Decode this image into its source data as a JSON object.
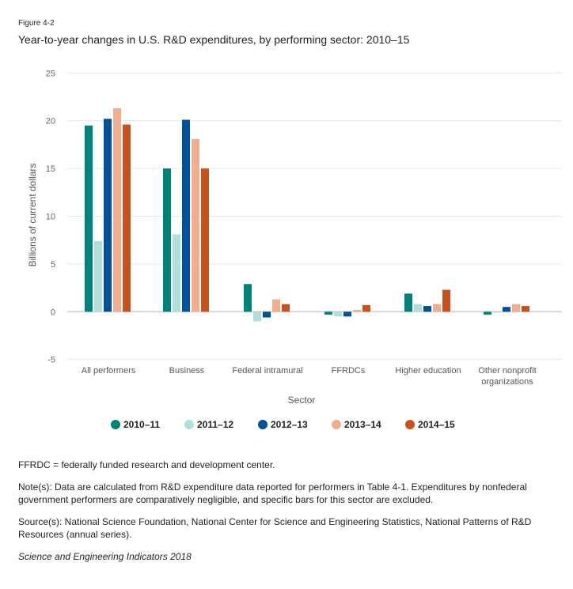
{
  "header": {
    "figure": "Figure 4-2",
    "title": "Year-to-year changes in U.S. R&D expenditures, by performing sector: 2010–15"
  },
  "chart_data": {
    "type": "bar",
    "title": "Year-to-year changes in U.S. R&D expenditures, by performing sector: 2010–15",
    "xlabel": "Sector",
    "ylabel": "Billions of current dollars",
    "ylim": [
      -5,
      25
    ],
    "yticks": [
      -5,
      0,
      5,
      10,
      15,
      20,
      25
    ],
    "grid": true,
    "legend": "bottom",
    "categories": [
      "All performers",
      "Business",
      "Federal intramural",
      "FFRDCs",
      "Higher education",
      "Other nonprofit organizations"
    ],
    "series": [
      {
        "name": "2010–11",
        "color": "#00827c",
        "values": [
          19.5,
          15.0,
          2.9,
          -0.3,
          1.9,
          -0.3
        ]
      },
      {
        "name": "2011–12",
        "color": "#b0dedb",
        "values": [
          7.4,
          8.1,
          -1.0,
          -0.5,
          0.8,
          -0.1
        ]
      },
      {
        "name": "2012–13",
        "color": "#00519b",
        "values": [
          20.2,
          20.1,
          -0.6,
          -0.5,
          0.6,
          0.5
        ]
      },
      {
        "name": "2013–14",
        "color": "#eeae8f",
        "values": [
          21.3,
          18.1,
          1.3,
          0.2,
          0.8,
          0.8
        ]
      },
      {
        "name": "2014–15",
        "color": "#c8521e",
        "values": [
          19.6,
          15.0,
          0.8,
          0.7,
          2.3,
          0.6
        ]
      }
    ]
  },
  "notes": {
    "abbrev": "FFRDC = federally funded research and development center.",
    "note": "Note(s): Data are calculated from R&D expenditure data reported for performers in Table 4-1. Expenditures by nonfederal government performers are comparatively negligible, and specific bars for this sector are excluded.",
    "source": "Source(s): National Science Foundation, National Center for Science and Engineering Statistics, National Patterns of R&D Resources (annual series).",
    "citation": "Science and Engineering Indicators 2018"
  }
}
